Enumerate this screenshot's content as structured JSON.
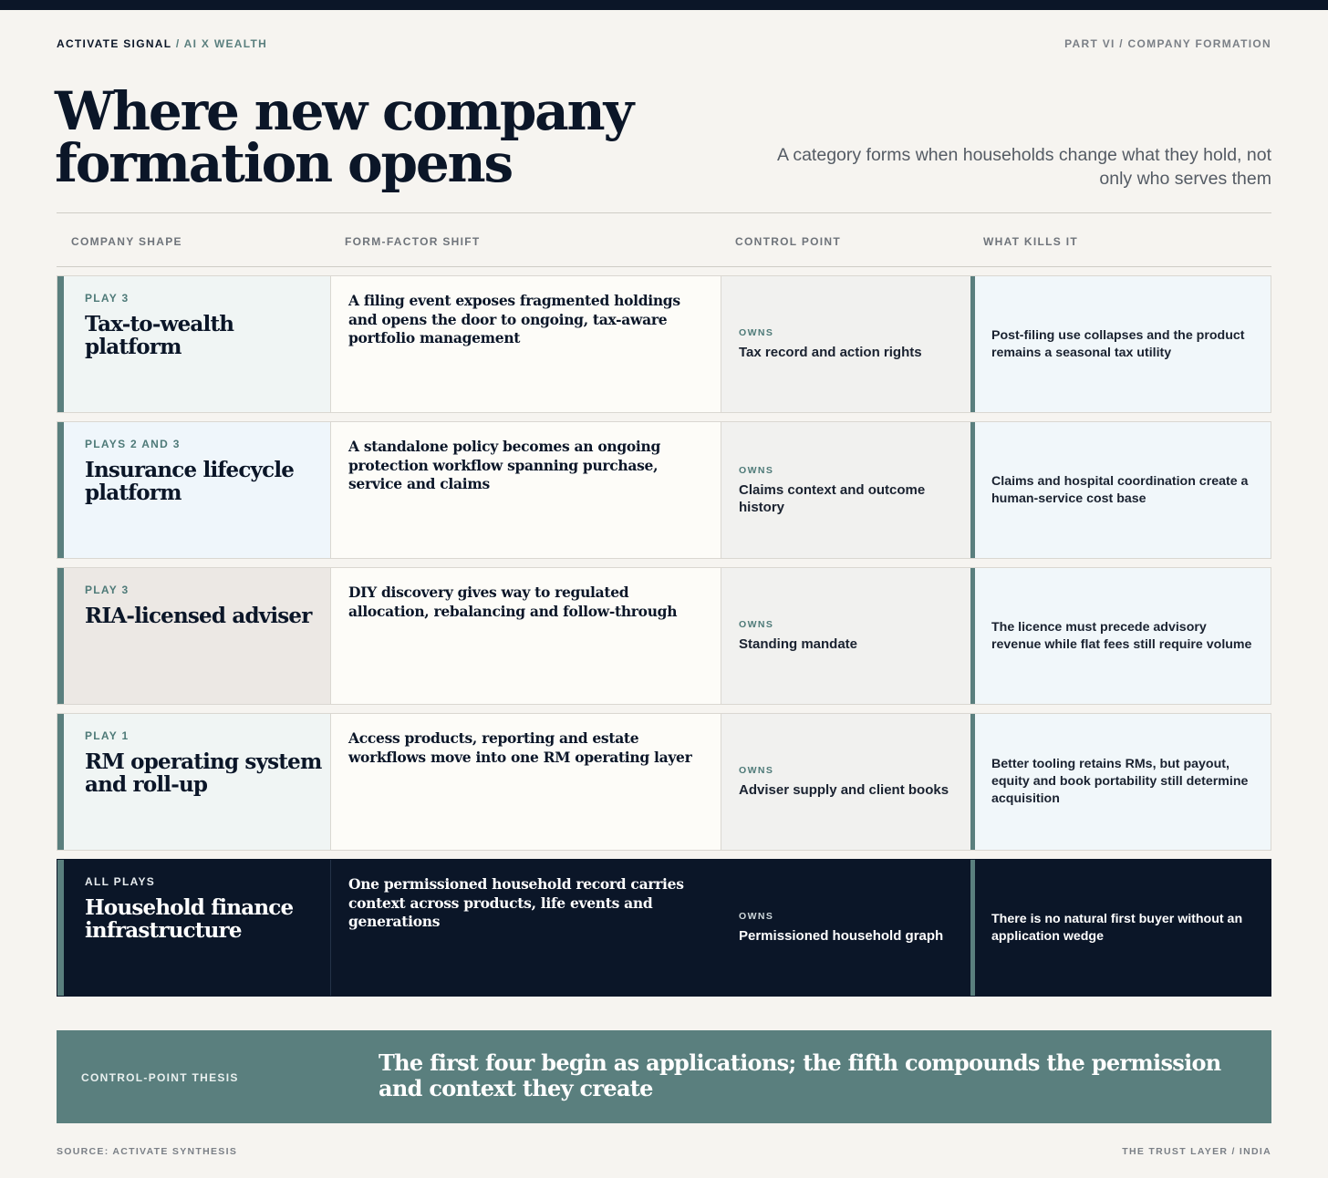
{
  "header": {
    "brand": "ACTIVATE SIGNAL",
    "separator": "/",
    "series": "AI X WEALTH",
    "section": "PART VI / COMPANY FORMATION"
  },
  "title_line1": "Where new company",
  "title_line2": "formation opens",
  "subtitle": "A category forms when households change what they hold, not only who serves them",
  "columns": [
    "COMPANY SHAPE",
    "FORM-FACTOR SHIFT",
    "CONTROL POINT",
    "WHAT KILLS IT"
  ],
  "rows": [
    {
      "play": "PLAY 3",
      "shape": "Tax-to-wealth platform",
      "shift": "A filing event exposes fragmented holdings and opens the door to ongoing, tax-aware portfolio management",
      "owns_label": "OWNS",
      "control": "Tax record and action rights",
      "kills": "Post-filing use collapses and the product remains a seasonal tax utility",
      "shape_bg": "#f0f5f4"
    },
    {
      "play": "PLAYS 2 AND 3",
      "shape": "Insurance lifecycle platform",
      "shift": "A standalone policy becomes an ongoing protection workflow spanning purchase, service and claims",
      "owns_label": "OWNS",
      "control": "Claims context and outcome history",
      "kills": "Claims and hospital coordination create a human-service cost base",
      "shape_bg": "#eff6fb"
    },
    {
      "play": "PLAY 3",
      "shape": "RIA-licensed adviser",
      "shift": "DIY discovery gives way to regulated allocation, rebalancing and follow-through",
      "owns_label": "OWNS",
      "control": "Standing mandate",
      "kills": "The licence must precede advisory revenue while flat fees still require volume",
      "shape_bg": "#ece8e4"
    },
    {
      "play": "PLAY 1",
      "shape": "RM operating system and roll-up",
      "shift": "Access products, reporting and estate workflows move into one RM operating layer",
      "owns_label": "OWNS",
      "control": "Adviser supply and client books",
      "kills": "Better tooling retains RMs, but payout, equity and book portability still determine acquisition",
      "shape_bg": "#f0f5f4"
    },
    {
      "play": "ALL PLAYS",
      "shape": "Household finance infrastructure",
      "shift": "One permissioned household record carries context across products, life events and generations",
      "owns_label": "OWNS",
      "control": "Permissioned household graph",
      "kills": "There is no natural first buyer without an application wedge",
      "shape_bg": "#0b1628"
    }
  ],
  "thesis": {
    "label": "CONTROL-POINT THESIS",
    "text": "The first four begin as applications; the fifth compounds the permission and context they create"
  },
  "footer": {
    "source": "SOURCE: ACTIVATE SYNTHESIS",
    "right": "THE TRUST LAYER / INDIA"
  },
  "colors": {
    "navy": "#0b1628",
    "teal": "#5a7f7e",
    "background": "#f6f4f0"
  }
}
